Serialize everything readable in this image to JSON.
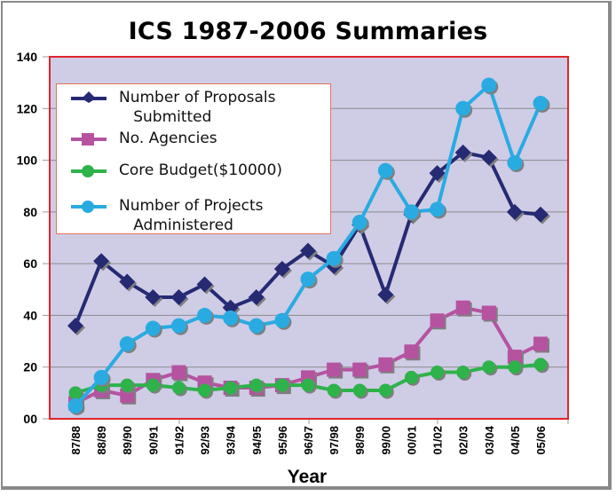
{
  "chart_data": {
    "type": "line",
    "title": "ICS 1987-2006 Summaries",
    "xlabel": "Year",
    "ylabel": "",
    "ylim": [
      0,
      140
    ],
    "yticks": [
      "00",
      "20",
      "40",
      "60",
      "80",
      "100",
      "120",
      "140"
    ],
    "ytick_values": [
      0,
      20,
      40,
      60,
      80,
      100,
      120,
      140
    ],
    "grid": true,
    "legend_position": "top-left",
    "categories": [
      "87/88",
      "88/89",
      "89/90",
      "90/91",
      "91/92",
      "92/93",
      "93/94",
      "94/95",
      "95/96",
      "96/97",
      "97/98",
      "98/99",
      "99/00",
      "00/01",
      "01/02",
      "02/03",
      "03/04",
      "04/05",
      "05/06"
    ],
    "series": [
      {
        "name": "Number of Proposals Submitted",
        "legend_lines": [
          "Number of Proposals",
          "   Submitted"
        ],
        "marker": "diamond",
        "color": "#252a73",
        "values": [
          36,
          61,
          53,
          47,
          47,
          52,
          43,
          47,
          58,
          65,
          59,
          75,
          48,
          79,
          95,
          103,
          101,
          80,
          79
        ]
      },
      {
        "name": "No. Agencies",
        "legend_lines": [
          "No. Agencies"
        ],
        "marker": "square",
        "color": "#b553a1",
        "values": [
          6,
          11,
          9,
          15,
          18,
          14,
          12,
          12,
          13,
          16,
          19,
          19,
          21,
          26,
          38,
          43,
          41,
          24,
          29
        ]
      },
      {
        "name": "Core Budget($10000)",
        "legend_lines": [
          "Core Budget($10000)"
        ],
        "marker": "circle",
        "color": "#2eb24a",
        "values": [
          10,
          13,
          13,
          13,
          12,
          11,
          12,
          13,
          13,
          13,
          11,
          11,
          11,
          16,
          18,
          18,
          20,
          20,
          21
        ]
      },
      {
        "name": "Number of Projects Administered",
        "legend_lines": [
          "Number of Projects",
          "   Administered"
        ],
        "marker": "circle",
        "color": "#29abe2",
        "values": [
          5,
          16,
          29,
          35,
          36,
          40,
          39,
          36,
          38,
          54,
          62,
          76,
          96,
          80,
          81,
          120,
          129,
          99,
          122
        ]
      }
    ]
  },
  "colors": {
    "plot_background": "#cfcce6",
    "plot_border": "#e0252b",
    "gridline": "#8c8c8c",
    "legend_border": "#e8735a"
  }
}
